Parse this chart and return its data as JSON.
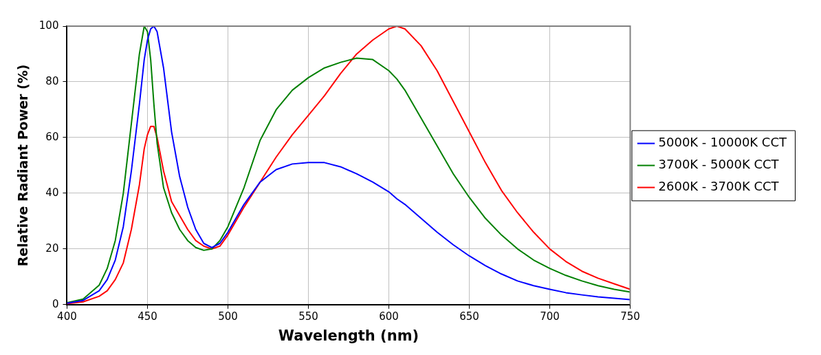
{
  "chart_data": {
    "type": "line",
    "xlabel": "Wavelength (nm)",
    "ylabel": "Relative Radiant Power (%)",
    "x": [
      400,
      410,
      420,
      425,
      430,
      435,
      440,
      445,
      448,
      450,
      452,
      454,
      456,
      460,
      465,
      470,
      475,
      480,
      485,
      490,
      495,
      500,
      510,
      520,
      530,
      540,
      550,
      560,
      570,
      580,
      590,
      600,
      605,
      610,
      620,
      630,
      640,
      650,
      660,
      670,
      680,
      690,
      700,
      710,
      720,
      730,
      740,
      750
    ],
    "series": [
      {
        "name": "5000K - 10000K CCT",
        "color": "#0000ff",
        "values": [
          0.5,
          1.5,
          5,
          9,
          16,
          28,
          48,
          72,
          88,
          95,
          99,
          100,
          98,
          85,
          62,
          46,
          35,
          27,
          22,
          20.5,
          22,
          26,
          36,
          44,
          48.5,
          50.5,
          51,
          51,
          49.5,
          47,
          44,
          40.5,
          38,
          36,
          31,
          26,
          21.5,
          17.5,
          14,
          11,
          8.5,
          6.8,
          5.5,
          4.3,
          3.5,
          2.8,
          2.3,
          1.8
        ]
      },
      {
        "name": "3700K - 5000K CCT",
        "color": "#008000",
        "values": [
          0.7,
          2,
          7,
          13,
          23,
          40,
          65,
          90,
          100,
          98,
          88,
          72,
          58,
          42,
          33,
          27,
          23,
          20.5,
          19.5,
          20,
          23,
          28,
          42,
          59,
          70,
          77,
          81.5,
          85,
          87,
          88.5,
          88,
          84,
          81,
          77,
          67,
          57,
          47,
          38.5,
          31,
          25,
          20,
          16,
          13,
          10.5,
          8.5,
          6.8,
          5.5,
          4.5
        ]
      },
      {
        "name": "2600K - 3700K CCT",
        "color": "#ff0000",
        "values": [
          0.3,
          1,
          3,
          5,
          9,
          15,
          27,
          43,
          56,
          61,
          64,
          64,
          60,
          48,
          37,
          32,
          27,
          23,
          21,
          20,
          21,
          25,
          35,
          44,
          53,
          61,
          68,
          75,
          83,
          90,
          95,
          99,
          100,
          99,
          93,
          84,
          73,
          62,
          51,
          41,
          33,
          26,
          20,
          15.5,
          12,
          9.5,
          7.5,
          5.5
        ]
      }
    ],
    "xlim": [
      400,
      750
    ],
    "xticks": [
      400,
      450,
      500,
      550,
      600,
      650,
      700,
      750
    ],
    "ylim": [
      0,
      100
    ],
    "yticks": [
      0,
      20,
      40,
      60,
      80,
      100
    ],
    "grid": true,
    "legend": "right",
    "marker": "none",
    "line_style": "solid"
  }
}
